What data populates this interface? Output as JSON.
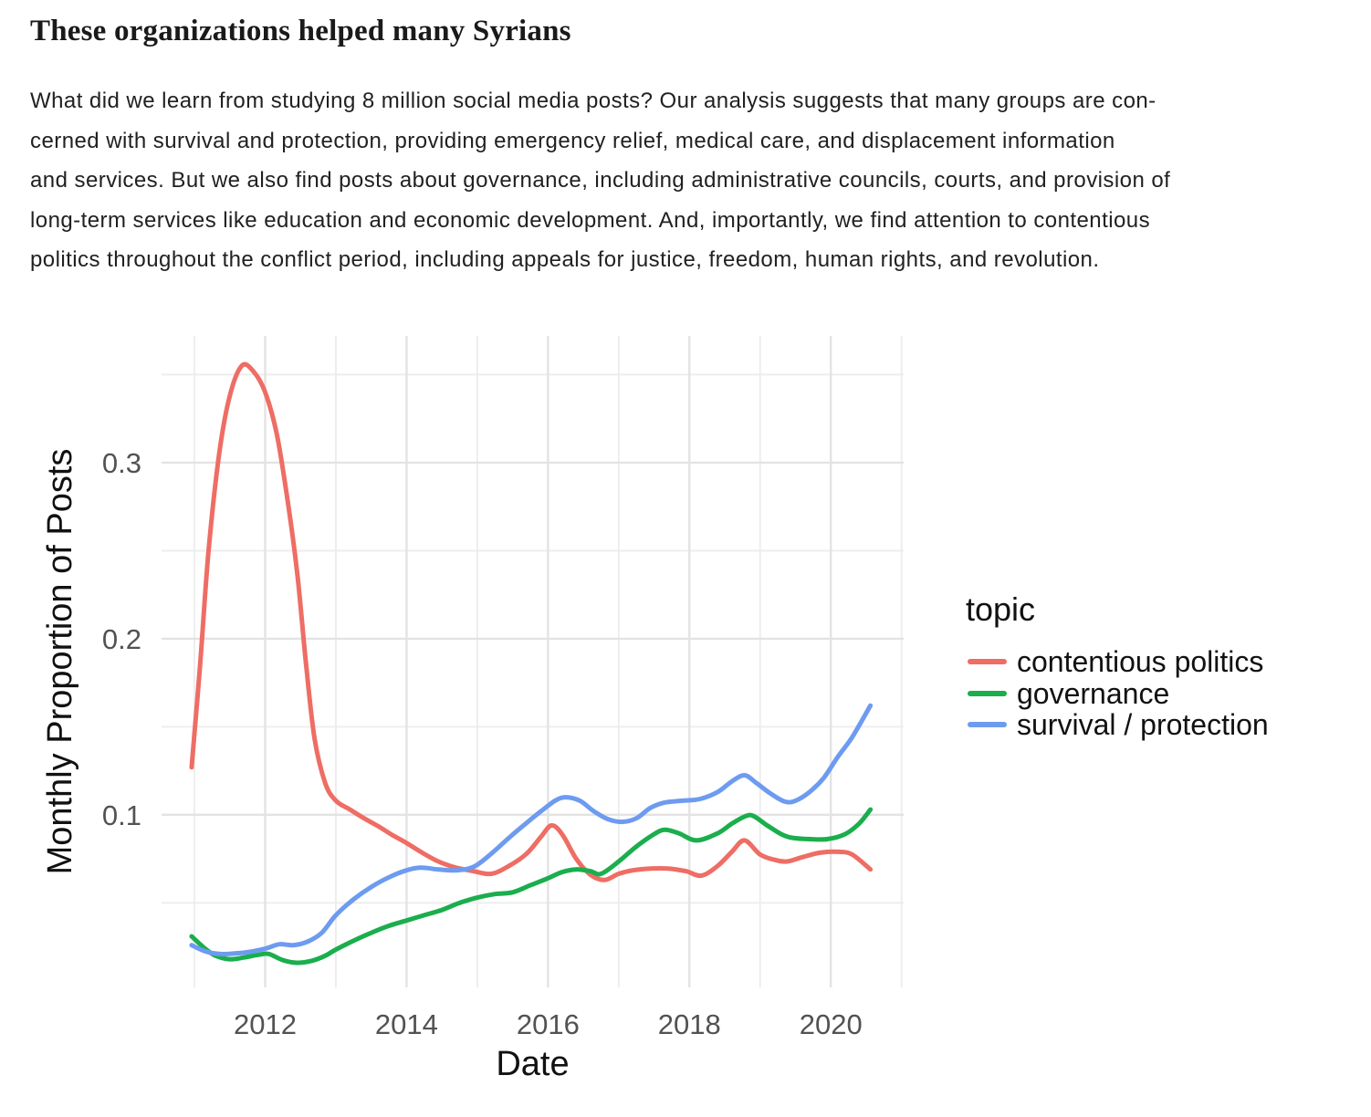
{
  "article": {
    "title": "These organizations helped many Syrians",
    "paragraph_lines": [
      "What did we learn from studying 8 million social media posts? Our analysis suggests that many groups are con-",
      "cerned with survival and protection, providing emergency relief, medical care, and displacement information",
      "and services. But we also find posts about governance, including administrative councils, courts, and provision of",
      "long-term services like education and economic development. And, importantly, we find attention to contentious",
      "politics throughout the conflict period, including appeals for justice, freedom, human rights, and revolution."
    ]
  },
  "chart_data": {
    "type": "line",
    "title": "",
    "xlabel": "Date",
    "ylabel": "Monthly Proportion of Posts",
    "legend_title": "topic",
    "legend_position": "right",
    "grid": true,
    "xlim": [
      2010.535,
      2021.03
    ],
    "ylim": [
      0.002,
      0.372
    ],
    "x_ticks": [
      2012,
      2014,
      2016,
      2018,
      2020
    ],
    "x_minor_ticks": [
      2011,
      2013,
      2015,
      2017,
      2019,
      2021
    ],
    "y_ticks": [
      0.1,
      0.2,
      0.3
    ],
    "y_minor_ticks": [
      0.05,
      0.15,
      0.25,
      0.35
    ],
    "colors": {
      "grid_major": "#e3e3e3",
      "grid_minor": "#ececec",
      "tick_label": "#525252",
      "axis_title": "#111111",
      "legend_text": "#111111"
    },
    "series": [
      {
        "name": "contentious politics",
        "color": "#ee6d64",
        "points": [
          [
            2010.96,
            0.127
          ],
          [
            2011.08,
            0.185
          ],
          [
            2011.2,
            0.25
          ],
          [
            2011.35,
            0.305
          ],
          [
            2011.5,
            0.338
          ],
          [
            2011.67,
            0.355
          ],
          [
            2011.83,
            0.352
          ],
          [
            2012.0,
            0.34
          ],
          [
            2012.17,
            0.315
          ],
          [
            2012.33,
            0.275
          ],
          [
            2012.46,
            0.235
          ],
          [
            2012.58,
            0.185
          ],
          [
            2012.7,
            0.143
          ],
          [
            2012.85,
            0.118
          ],
          [
            2013.0,
            0.108
          ],
          [
            2013.2,
            0.103
          ],
          [
            2013.4,
            0.098
          ],
          [
            2013.6,
            0.0935
          ],
          [
            2013.8,
            0.0885
          ],
          [
            2014.0,
            0.084
          ],
          [
            2014.2,
            0.079
          ],
          [
            2014.45,
            0.0735
          ],
          [
            2014.7,
            0.07
          ],
          [
            2014.95,
            0.068
          ],
          [
            2015.2,
            0.0665
          ],
          [
            2015.45,
            0.071
          ],
          [
            2015.7,
            0.078
          ],
          [
            2015.9,
            0.0875
          ],
          [
            2016.05,
            0.094
          ],
          [
            2016.2,
            0.089
          ],
          [
            2016.4,
            0.075
          ],
          [
            2016.6,
            0.066
          ],
          [
            2016.8,
            0.063
          ],
          [
            2017.0,
            0.0665
          ],
          [
            2017.2,
            0.0685
          ],
          [
            2017.45,
            0.0695
          ],
          [
            2017.7,
            0.0695
          ],
          [
            2017.95,
            0.068
          ],
          [
            2018.17,
            0.0655
          ],
          [
            2018.4,
            0.071
          ],
          [
            2018.6,
            0.079
          ],
          [
            2018.78,
            0.0855
          ],
          [
            2019.0,
            0.0775
          ],
          [
            2019.2,
            0.0745
          ],
          [
            2019.38,
            0.0735
          ],
          [
            2019.6,
            0.076
          ],
          [
            2019.85,
            0.0785
          ],
          [
            2020.1,
            0.079
          ],
          [
            2020.3,
            0.0775
          ],
          [
            2020.56,
            0.069
          ]
        ]
      },
      {
        "name": "governance",
        "color": "#1aae4c",
        "points": [
          [
            2010.96,
            0.031
          ],
          [
            2011.15,
            0.024
          ],
          [
            2011.3,
            0.02
          ],
          [
            2011.5,
            0.018
          ],
          [
            2011.7,
            0.019
          ],
          [
            2011.9,
            0.0205
          ],
          [
            2012.05,
            0.021
          ],
          [
            2012.25,
            0.0175
          ],
          [
            2012.45,
            0.016
          ],
          [
            2012.65,
            0.017
          ],
          [
            2012.85,
            0.02
          ],
          [
            2013.0,
            0.0235
          ],
          [
            2013.25,
            0.0285
          ],
          [
            2013.5,
            0.033
          ],
          [
            2013.75,
            0.037
          ],
          [
            2014.0,
            0.04
          ],
          [
            2014.25,
            0.043
          ],
          [
            2014.5,
            0.046
          ],
          [
            2014.75,
            0.05
          ],
          [
            2015.0,
            0.053
          ],
          [
            2015.25,
            0.055
          ],
          [
            2015.5,
            0.056
          ],
          [
            2015.75,
            0.06
          ],
          [
            2016.0,
            0.064
          ],
          [
            2016.2,
            0.0675
          ],
          [
            2016.4,
            0.069
          ],
          [
            2016.6,
            0.068
          ],
          [
            2016.75,
            0.0665
          ],
          [
            2017.0,
            0.0735
          ],
          [
            2017.25,
            0.082
          ],
          [
            2017.5,
            0.089
          ],
          [
            2017.65,
            0.0915
          ],
          [
            2017.85,
            0.0895
          ],
          [
            2018.1,
            0.0855
          ],
          [
            2018.4,
            0.0895
          ],
          [
            2018.6,
            0.095
          ],
          [
            2018.78,
            0.099
          ],
          [
            2018.9,
            0.0995
          ],
          [
            2019.1,
            0.094
          ],
          [
            2019.3,
            0.089
          ],
          [
            2019.45,
            0.087
          ],
          [
            2019.7,
            0.0862
          ],
          [
            2019.95,
            0.0862
          ],
          [
            2020.2,
            0.089
          ],
          [
            2020.4,
            0.095
          ],
          [
            2020.56,
            0.103
          ]
        ]
      },
      {
        "name": "survival / protection",
        "color": "#6d9bf0",
        "points": [
          [
            2010.96,
            0.026
          ],
          [
            2011.15,
            0.0225
          ],
          [
            2011.35,
            0.021
          ],
          [
            2011.55,
            0.0212
          ],
          [
            2011.75,
            0.022
          ],
          [
            2012.0,
            0.024
          ],
          [
            2012.2,
            0.0265
          ],
          [
            2012.4,
            0.026
          ],
          [
            2012.6,
            0.028
          ],
          [
            2012.8,
            0.033
          ],
          [
            2013.0,
            0.043
          ],
          [
            2013.25,
            0.052
          ],
          [
            2013.5,
            0.059
          ],
          [
            2013.75,
            0.0645
          ],
          [
            2014.0,
            0.0685
          ],
          [
            2014.2,
            0.07
          ],
          [
            2014.45,
            0.069
          ],
          [
            2014.7,
            0.0685
          ],
          [
            2014.95,
            0.0705
          ],
          [
            2015.2,
            0.078
          ],
          [
            2015.45,
            0.087
          ],
          [
            2015.7,
            0.0955
          ],
          [
            2015.9,
            0.102
          ],
          [
            2016.1,
            0.108
          ],
          [
            2016.25,
            0.11
          ],
          [
            2016.45,
            0.108
          ],
          [
            2016.65,
            0.102
          ],
          [
            2016.85,
            0.0975
          ],
          [
            2017.05,
            0.096
          ],
          [
            2017.25,
            0.098
          ],
          [
            2017.45,
            0.104
          ],
          [
            2017.65,
            0.107
          ],
          [
            2017.9,
            0.108
          ],
          [
            2018.15,
            0.109
          ],
          [
            2018.4,
            0.113
          ],
          [
            2018.6,
            0.119
          ],
          [
            2018.78,
            0.1225
          ],
          [
            2018.95,
            0.118
          ],
          [
            2019.15,
            0.112
          ],
          [
            2019.35,
            0.1075
          ],
          [
            2019.5,
            0.108
          ],
          [
            2019.7,
            0.113
          ],
          [
            2019.9,
            0.121
          ],
          [
            2020.1,
            0.133
          ],
          [
            2020.3,
            0.144
          ],
          [
            2020.56,
            0.162
          ]
        ]
      }
    ]
  }
}
